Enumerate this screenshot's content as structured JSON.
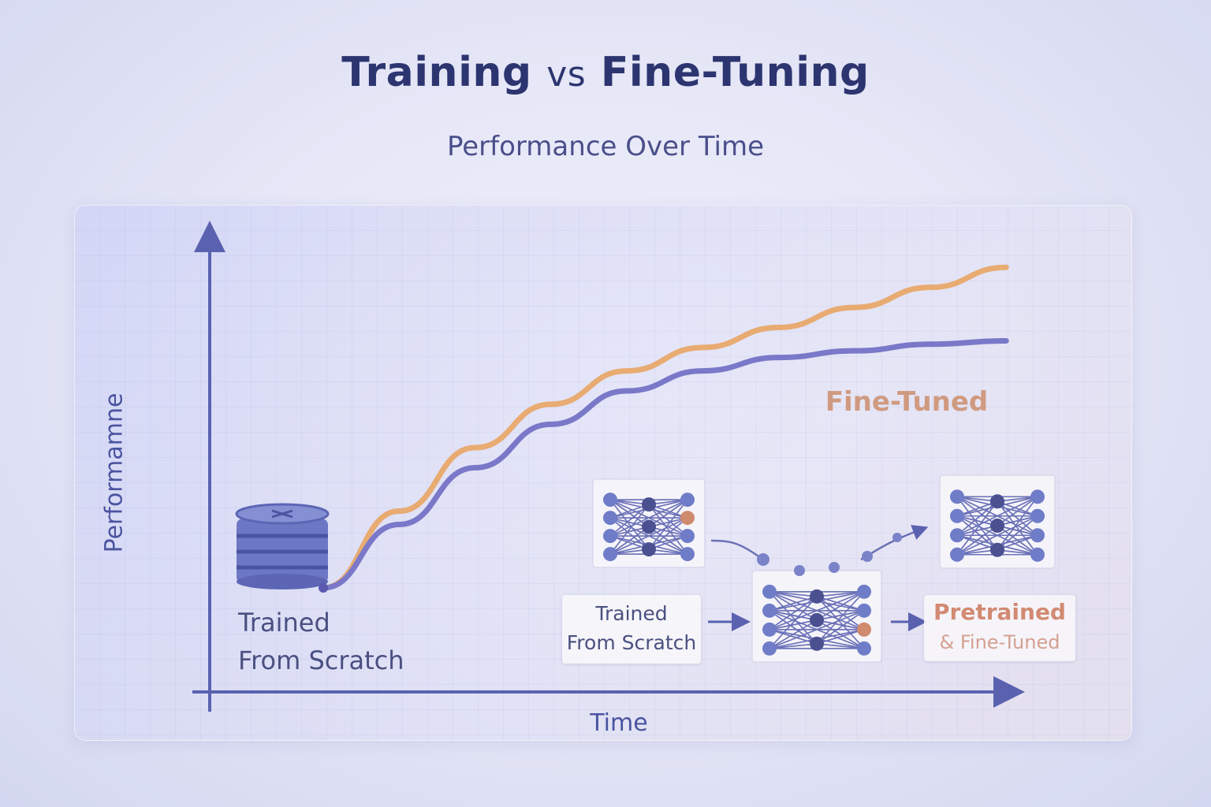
{
  "title": {
    "main_a": "Training",
    "vs": "vs",
    "main_b": "Fine-Tuning"
  },
  "subtitle": "Performance Over Time",
  "chart_data": {
    "type": "line",
    "title": "Training vs Fine-Tuning",
    "subtitle": "Performance Over Time",
    "xlabel": "Time",
    "ylabel": "Performamne",
    "xlim": [
      0,
      10
    ],
    "ylim": [
      0,
      10
    ],
    "grid": true,
    "series": [
      {
        "name": "Fine-Tuned",
        "color": "#e8ab72",
        "x": [
          0,
          1,
          2,
          3,
          4,
          5,
          6,
          7,
          8,
          9
        ],
        "y": [
          0.0,
          2.3,
          4.2,
          5.5,
          6.5,
          7.2,
          7.8,
          8.4,
          9.0,
          9.6
        ]
      },
      {
        "name": "",
        "color": "#7a78c8",
        "x": [
          0,
          1,
          2,
          3,
          4,
          5,
          6,
          7,
          8,
          9
        ],
        "y": [
          0.0,
          1.9,
          3.6,
          4.9,
          5.9,
          6.5,
          6.9,
          7.1,
          7.3,
          7.4
        ]
      }
    ],
    "annotations": {
      "start_label_line1": "Trained",
      "start_label_line2": "From Scratch",
      "series_label": "Fine-Tuned"
    }
  },
  "flow": {
    "scratch_line1": "Trained",
    "scratch_line2": "From Scratch",
    "pre_line1": "Pretrained",
    "pre_line2": "& Fine-Tuned"
  },
  "icons": [
    "database-icon",
    "neural-network-icon",
    "arrow-right-icon"
  ],
  "colors": {
    "title": "#2c3570",
    "axis": "#5a62b0",
    "fine_tuned": "#e8ab72",
    "scratch": "#7a78c8",
    "accent_label": "#d28a72"
  }
}
